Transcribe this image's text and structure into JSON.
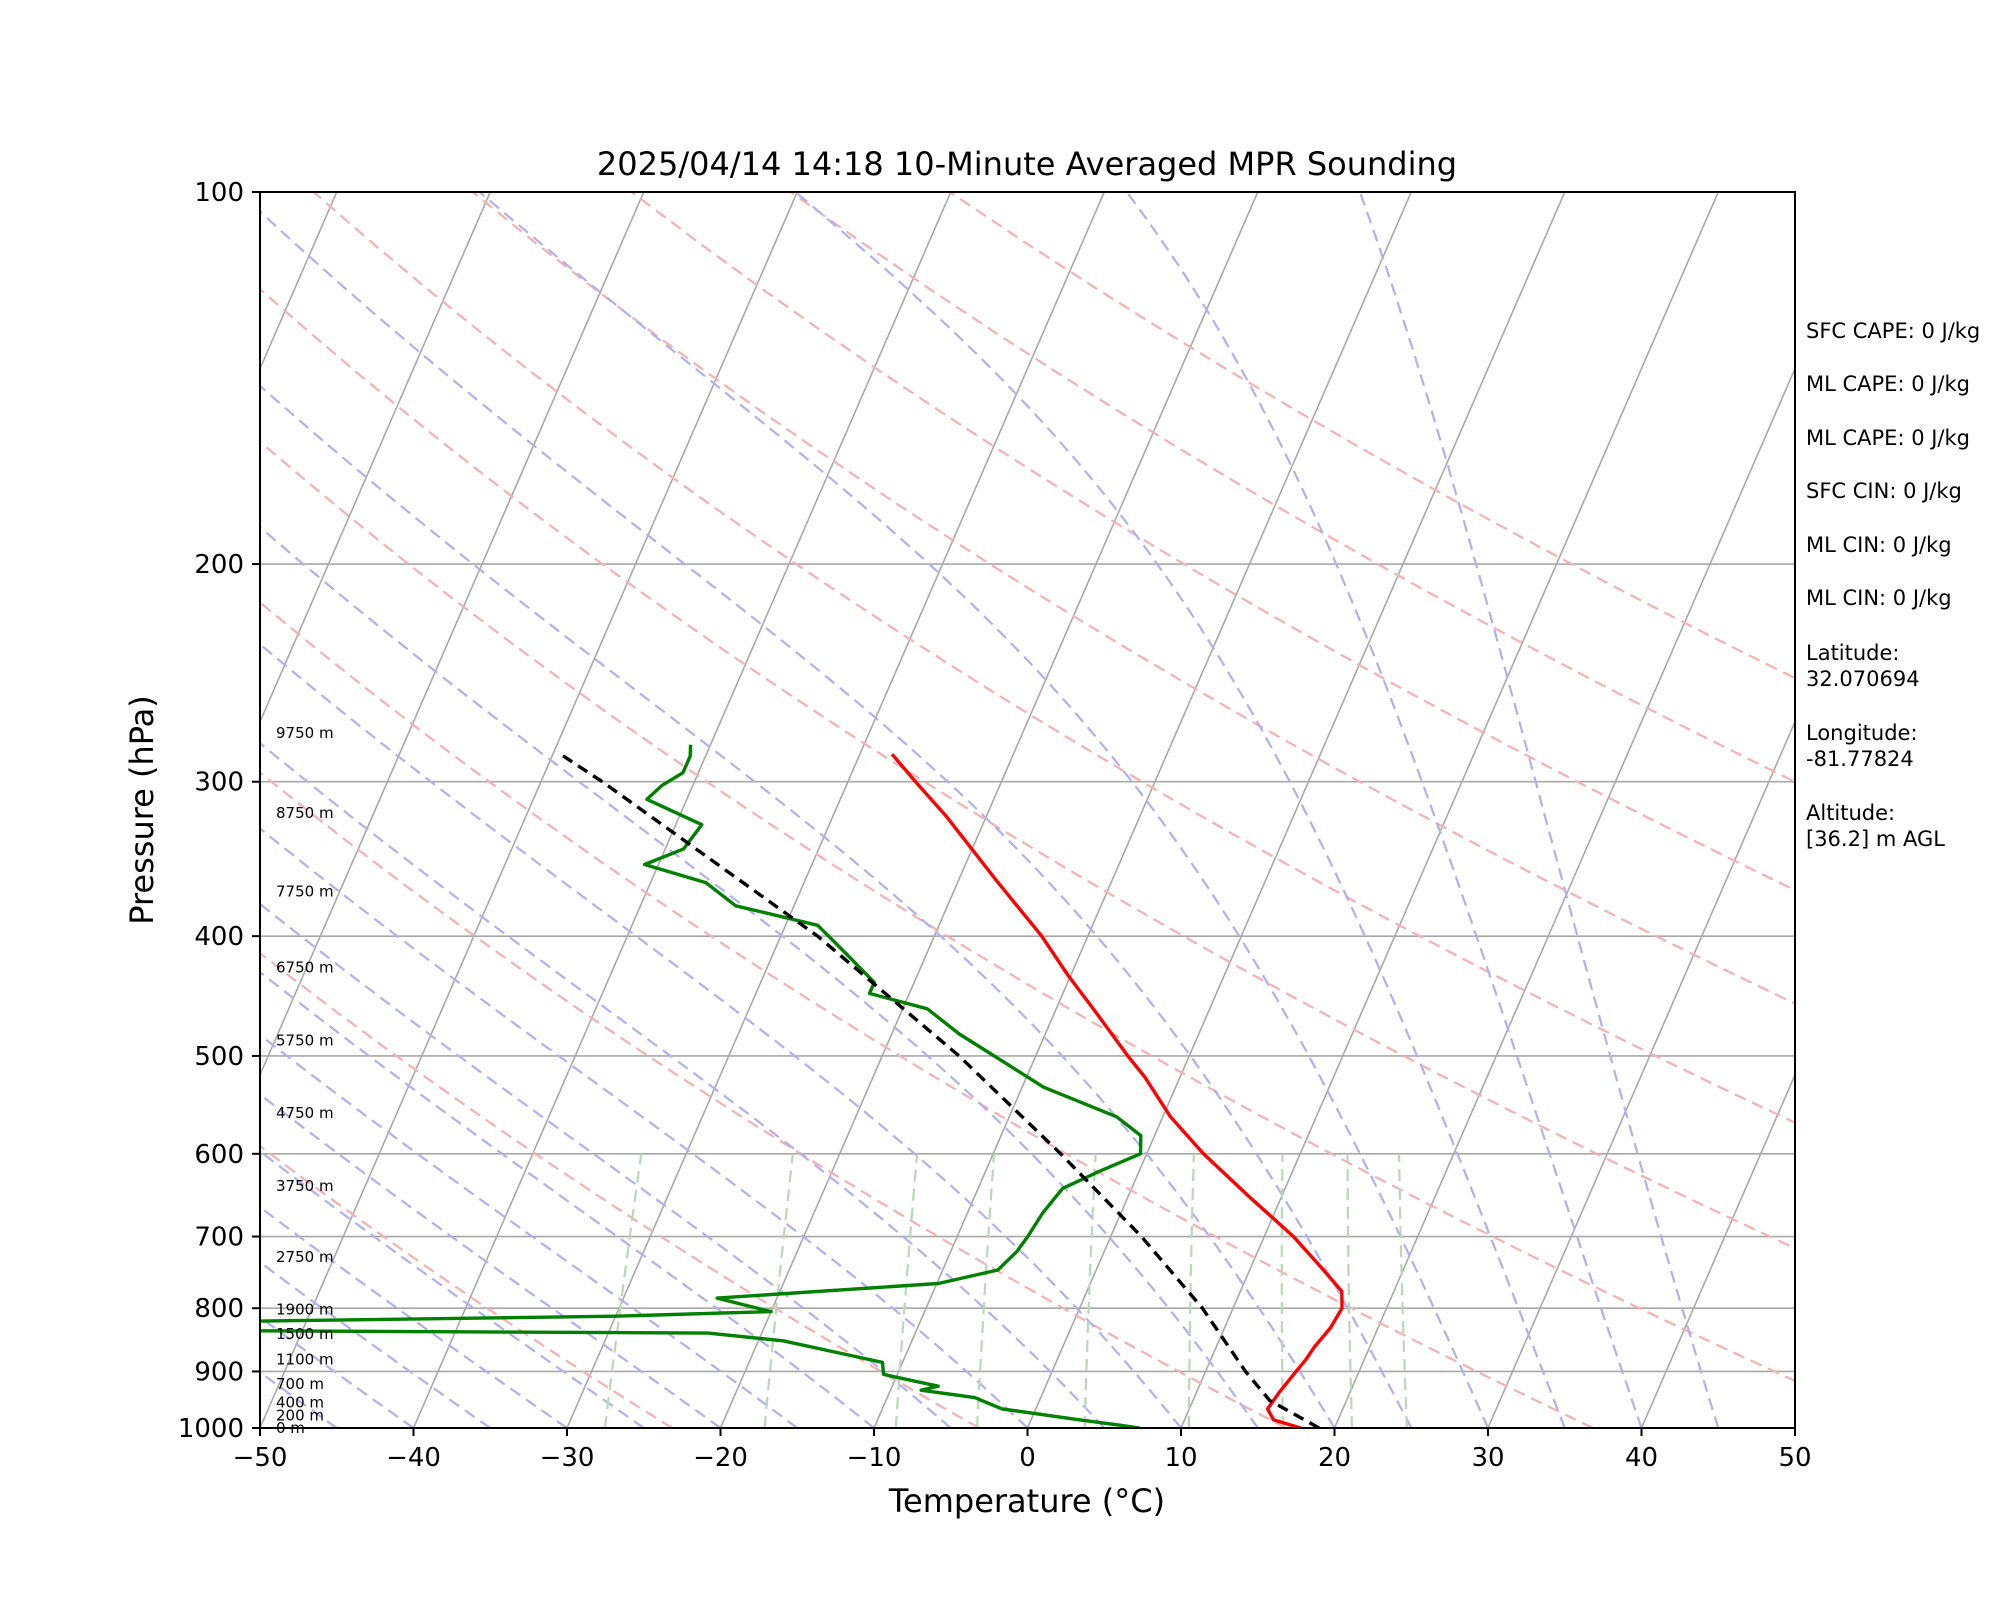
{
  "chart_data": {
    "type": "line",
    "title": "2025/04/14 14:18 10-Minute Averaged MPR Sounding",
    "xlabel": "Temperature (°C)",
    "ylabel": "Pressure (hPa)",
    "xlim": [
      -50,
      50
    ],
    "ylim": [
      1000,
      100
    ],
    "y_scale": "log",
    "skew": "skew-T log-P",
    "grid": true,
    "x_ticks": [
      "−50",
      "−40",
      "−30",
      "−20",
      "−10",
      "0",
      "10",
      "20",
      "30",
      "40",
      "50"
    ],
    "y_ticks": [
      "100",
      "200",
      "300",
      "400",
      "500",
      "600",
      "700",
      "800",
      "900",
      "1000"
    ],
    "series": [
      {
        "key": "temperature",
        "color": "#ff0000",
        "points": [
          [
            1000,
            17.8
          ],
          [
            985,
            15.8
          ],
          [
            965,
            15.1
          ],
          [
            935,
            15.4
          ],
          [
            900,
            15.9
          ],
          [
            880,
            16.2
          ],
          [
            860,
            16.4
          ],
          [
            830,
            16.9
          ],
          [
            800,
            17.1
          ],
          [
            775,
            16.6
          ],
          [
            740,
            14.5
          ],
          [
            700,
            11.9
          ],
          [
            650,
            7.9
          ],
          [
            600,
            3.7
          ],
          [
            560,
            0.5
          ],
          [
            520,
            -2.3
          ],
          [
            500,
            -4.0
          ],
          [
            460,
            -7.4
          ],
          [
            430,
            -10.2
          ],
          [
            400,
            -13.0
          ],
          [
            360,
            -17.6
          ],
          [
            320,
            -22.6
          ],
          [
            300,
            -25.6
          ],
          [
            285,
            -27.9
          ]
        ]
      },
      {
        "key": "dewpoint",
        "color": "#008000",
        "points": [
          [
            1000,
            7.3
          ],
          [
            995,
            6.0
          ],
          [
            985,
            3.2
          ],
          [
            965,
            -2.2
          ],
          [
            945,
            -4.3
          ],
          [
            932,
            -8.0
          ],
          [
            925,
            -7.0
          ],
          [
            905,
            -10.9
          ],
          [
            885,
            -11.3
          ],
          [
            850,
            -18.4
          ],
          [
            838,
            -23.5
          ],
          [
            834,
            -55.0
          ],
          [
            820,
            -55.0
          ],
          [
            812,
            -30.0
          ],
          [
            805,
            -20.0
          ],
          [
            785,
            -23.9
          ],
          [
            764,
            -9.9
          ],
          [
            745,
            -6.4
          ],
          [
            720,
            -5.7
          ],
          [
            700,
            -5.4
          ],
          [
            670,
            -5.1
          ],
          [
            640,
            -4.5
          ],
          [
            620,
            -2.6
          ],
          [
            600,
            -0.4
          ],
          [
            580,
            -0.9
          ],
          [
            560,
            -3.0
          ],
          [
            530,
            -8.6
          ],
          [
            505,
            -12.0
          ],
          [
            480,
            -15.6
          ],
          [
            458,
            -18.4
          ],
          [
            445,
            -22.6
          ],
          [
            436,
            -22.6
          ],
          [
            412,
            -25.4
          ],
          [
            392,
            -27.9
          ],
          [
            378,
            -33.8
          ],
          [
            362,
            -36.4
          ],
          [
            350,
            -40.9
          ],
          [
            340,
            -38.8
          ],
          [
            325,
            -38.3
          ],
          [
            310,
            -42.6
          ],
          [
            302,
            -42.0
          ],
          [
            295,
            -41.0
          ],
          [
            286,
            -41.0
          ],
          [
            280,
            -41.3
          ]
        ]
      },
      {
        "key": "parcel",
        "color": "#000000",
        "style": "dashed",
        "points": [
          [
            1000,
            19.0
          ],
          [
            950,
            15.0
          ],
          [
            900,
            12.6
          ],
          [
            800,
            8.0
          ],
          [
            700,
            2.0
          ],
          [
            600,
            -5.6
          ],
          [
            500,
            -15.0
          ],
          [
            400,
            -27.6
          ],
          [
            300,
            -46.0
          ],
          [
            285,
            -49.5
          ]
        ]
      }
    ],
    "height_labels": [
      {
        "p": 1000,
        "text": "0 m"
      },
      {
        "p": 977,
        "text": "200 m"
      },
      {
        "p": 954,
        "text": "400 m"
      },
      {
        "p": 921,
        "text": "700 m"
      },
      {
        "p": 880,
        "text": "1100 m"
      },
      {
        "p": 839,
        "text": "1500 m"
      },
      {
        "p": 802,
        "text": "1900 m"
      },
      {
        "p": 727,
        "text": "2750 m"
      },
      {
        "p": 637,
        "text": "3750 m"
      },
      {
        "p": 556,
        "text": "4750 m"
      },
      {
        "p": 486,
        "text": "5750 m"
      },
      {
        "p": 424,
        "text": "6750 m"
      },
      {
        "p": 368,
        "text": "7750 m"
      },
      {
        "p": 318,
        "text": "8750 m"
      },
      {
        "p": 274,
        "text": "9750 m"
      }
    ],
    "guide_colors": {
      "isotherm": "#a8a8a8",
      "dry_adiabat": "#f5b0b0",
      "moist_adiabat": "#b0b0f0",
      "mixing_ratio": "#b8d8b8"
    }
  },
  "side_text": [
    "SFC CAPE: 0 J/kg",
    "ML CAPE: 0 J/kg",
    "ML CAPE: 0 J/kg",
    "SFC CIN: 0 J/kg",
    "ML CIN: 0 J/kg",
    "ML CIN: 0 J/kg",
    "Latitude:",
    "32.070694",
    "Longitude:",
    "-81.77824",
    "Altitude:",
    "[36.2] m AGL"
  ]
}
